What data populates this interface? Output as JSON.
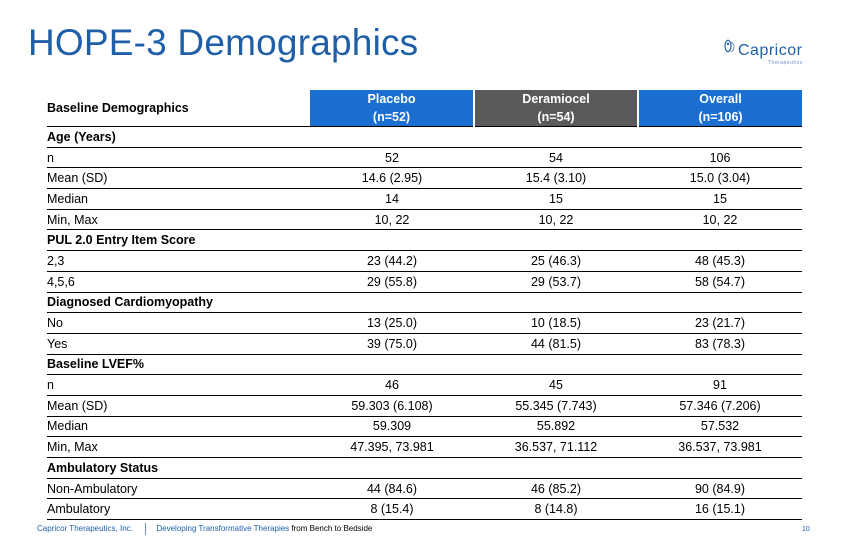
{
  "slide": {
    "title": "HOPE-3 Demographics",
    "page_number": "10"
  },
  "logo": {
    "name": "Capricor",
    "subtitle": "Therapeutics"
  },
  "table": {
    "corner_label": "Baseline Demographics",
    "columns": [
      {
        "name": "Placebo",
        "n": "(n=52)"
      },
      {
        "name": "Deramiocel",
        "n": "(n=54)"
      },
      {
        "name": "Overall",
        "n": "(n=106)"
      }
    ],
    "sections": [
      {
        "title": "Age (Years)",
        "rows": [
          {
            "label": "n",
            "values": [
              "52",
              "54",
              "106"
            ]
          },
          {
            "label": "Mean (SD)",
            "values": [
              "14.6 (2.95)",
              "15.4 (3.10)",
              "15.0 (3.04)"
            ]
          },
          {
            "label": "Median",
            "values": [
              "14",
              "15",
              "15"
            ]
          },
          {
            "label": "Min, Max",
            "values": [
              "10, 22",
              "10, 22",
              "10, 22"
            ]
          }
        ]
      },
      {
        "title": "PUL 2.0 Entry Item Score",
        "rows": [
          {
            "label": "2,3",
            "values": [
              "23 (44.2)",
              "25 (46.3)",
              "48 (45.3)"
            ]
          },
          {
            "label": "4,5,6",
            "values": [
              "29 (55.8)",
              "29 (53.7)",
              "58 (54.7)"
            ]
          }
        ]
      },
      {
        "title": "Diagnosed Cardiomyopathy",
        "rows": [
          {
            "label": "No",
            "values": [
              "13 (25.0)",
              "10 (18.5)",
              "23 (21.7)"
            ]
          },
          {
            "label": "Yes",
            "values": [
              "39 (75.0)",
              "44 (81.5)",
              "83 (78.3)"
            ]
          }
        ]
      },
      {
        "title": "Baseline LVEF%",
        "rows": [
          {
            "label": "n",
            "values": [
              "46",
              "45",
              "91"
            ]
          },
          {
            "label": "Mean (SD)",
            "values": [
              "59.303 (6.108)",
              "55.345 (7.743)",
              "57.346 (7.206)"
            ]
          },
          {
            "label": "Median",
            "values": [
              "59.309",
              "55.892",
              "57.532"
            ]
          },
          {
            "label": "Min, Max",
            "values": [
              "47.395, 73.981",
              "36.537, 71.112",
              "36.537, 73.981"
            ]
          }
        ]
      },
      {
        "title": "Ambulatory Status",
        "rows": [
          {
            "label": "Non-Ambulatory",
            "values": [
              "44 (84.6)",
              "46 (85.2)",
              "90 (84.9)"
            ]
          },
          {
            "label": "Ambulatory",
            "values": [
              "8 (15.4)",
              "8 (14.8)",
              "16 (15.1)"
            ]
          }
        ]
      }
    ]
  },
  "footer": {
    "company": "Capricor Therapeutics, Inc.",
    "tagline": "Developing Transformative Therapies",
    "tagline_rest": "from Bench to Bedside"
  },
  "colors": {
    "title_blue": "#1f5fa8",
    "header_blue": "#1a6fd0",
    "header_gray": "#5a5a5a"
  }
}
